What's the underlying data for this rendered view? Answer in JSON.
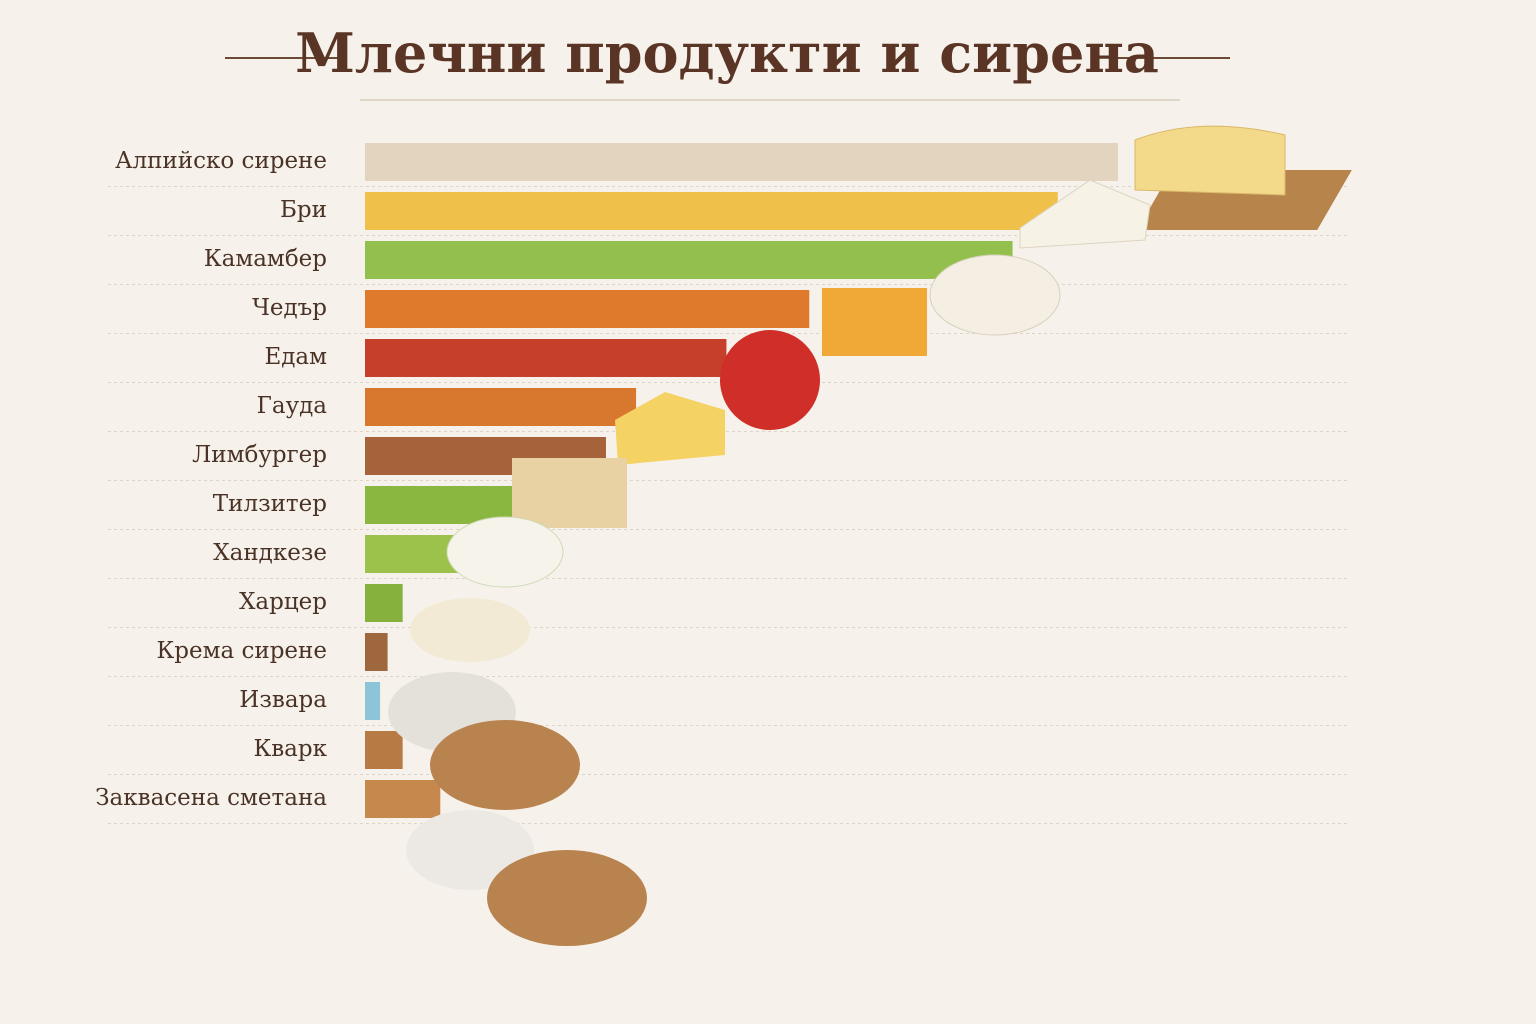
{
  "chart_data": {
    "type": "hbar",
    "title": "Млечни продукти и сирена",
    "categories": [
      "Алпийско сирене",
      "Бри",
      "Камамбер",
      "Чедър",
      "Едам",
      "Гауда",
      "Лимбургер",
      "Тилзитер",
      "Хандкезе",
      "Харцер",
      "Крема сирене",
      "Извара",
      "Кварк",
      "Заквасена сметана"
    ],
    "values": [
      100,
      92,
      86,
      59,
      48,
      36,
      32,
      21,
      14,
      5,
      3,
      2,
      5,
      10
    ],
    "colors": [
      "#e2d4bf",
      "#efc04a",
      "#93c04c",
      "#df7a2c",
      "#c63f2a",
      "#d8782f",
      "#a6623a",
      "#8ab73f",
      "#9dc24b",
      "#86b13d",
      "#9f673d",
      "#8cc4d8",
      "#b87a44",
      "#c6884c"
    ],
    "xlim": [
      0,
      100
    ]
  }
}
